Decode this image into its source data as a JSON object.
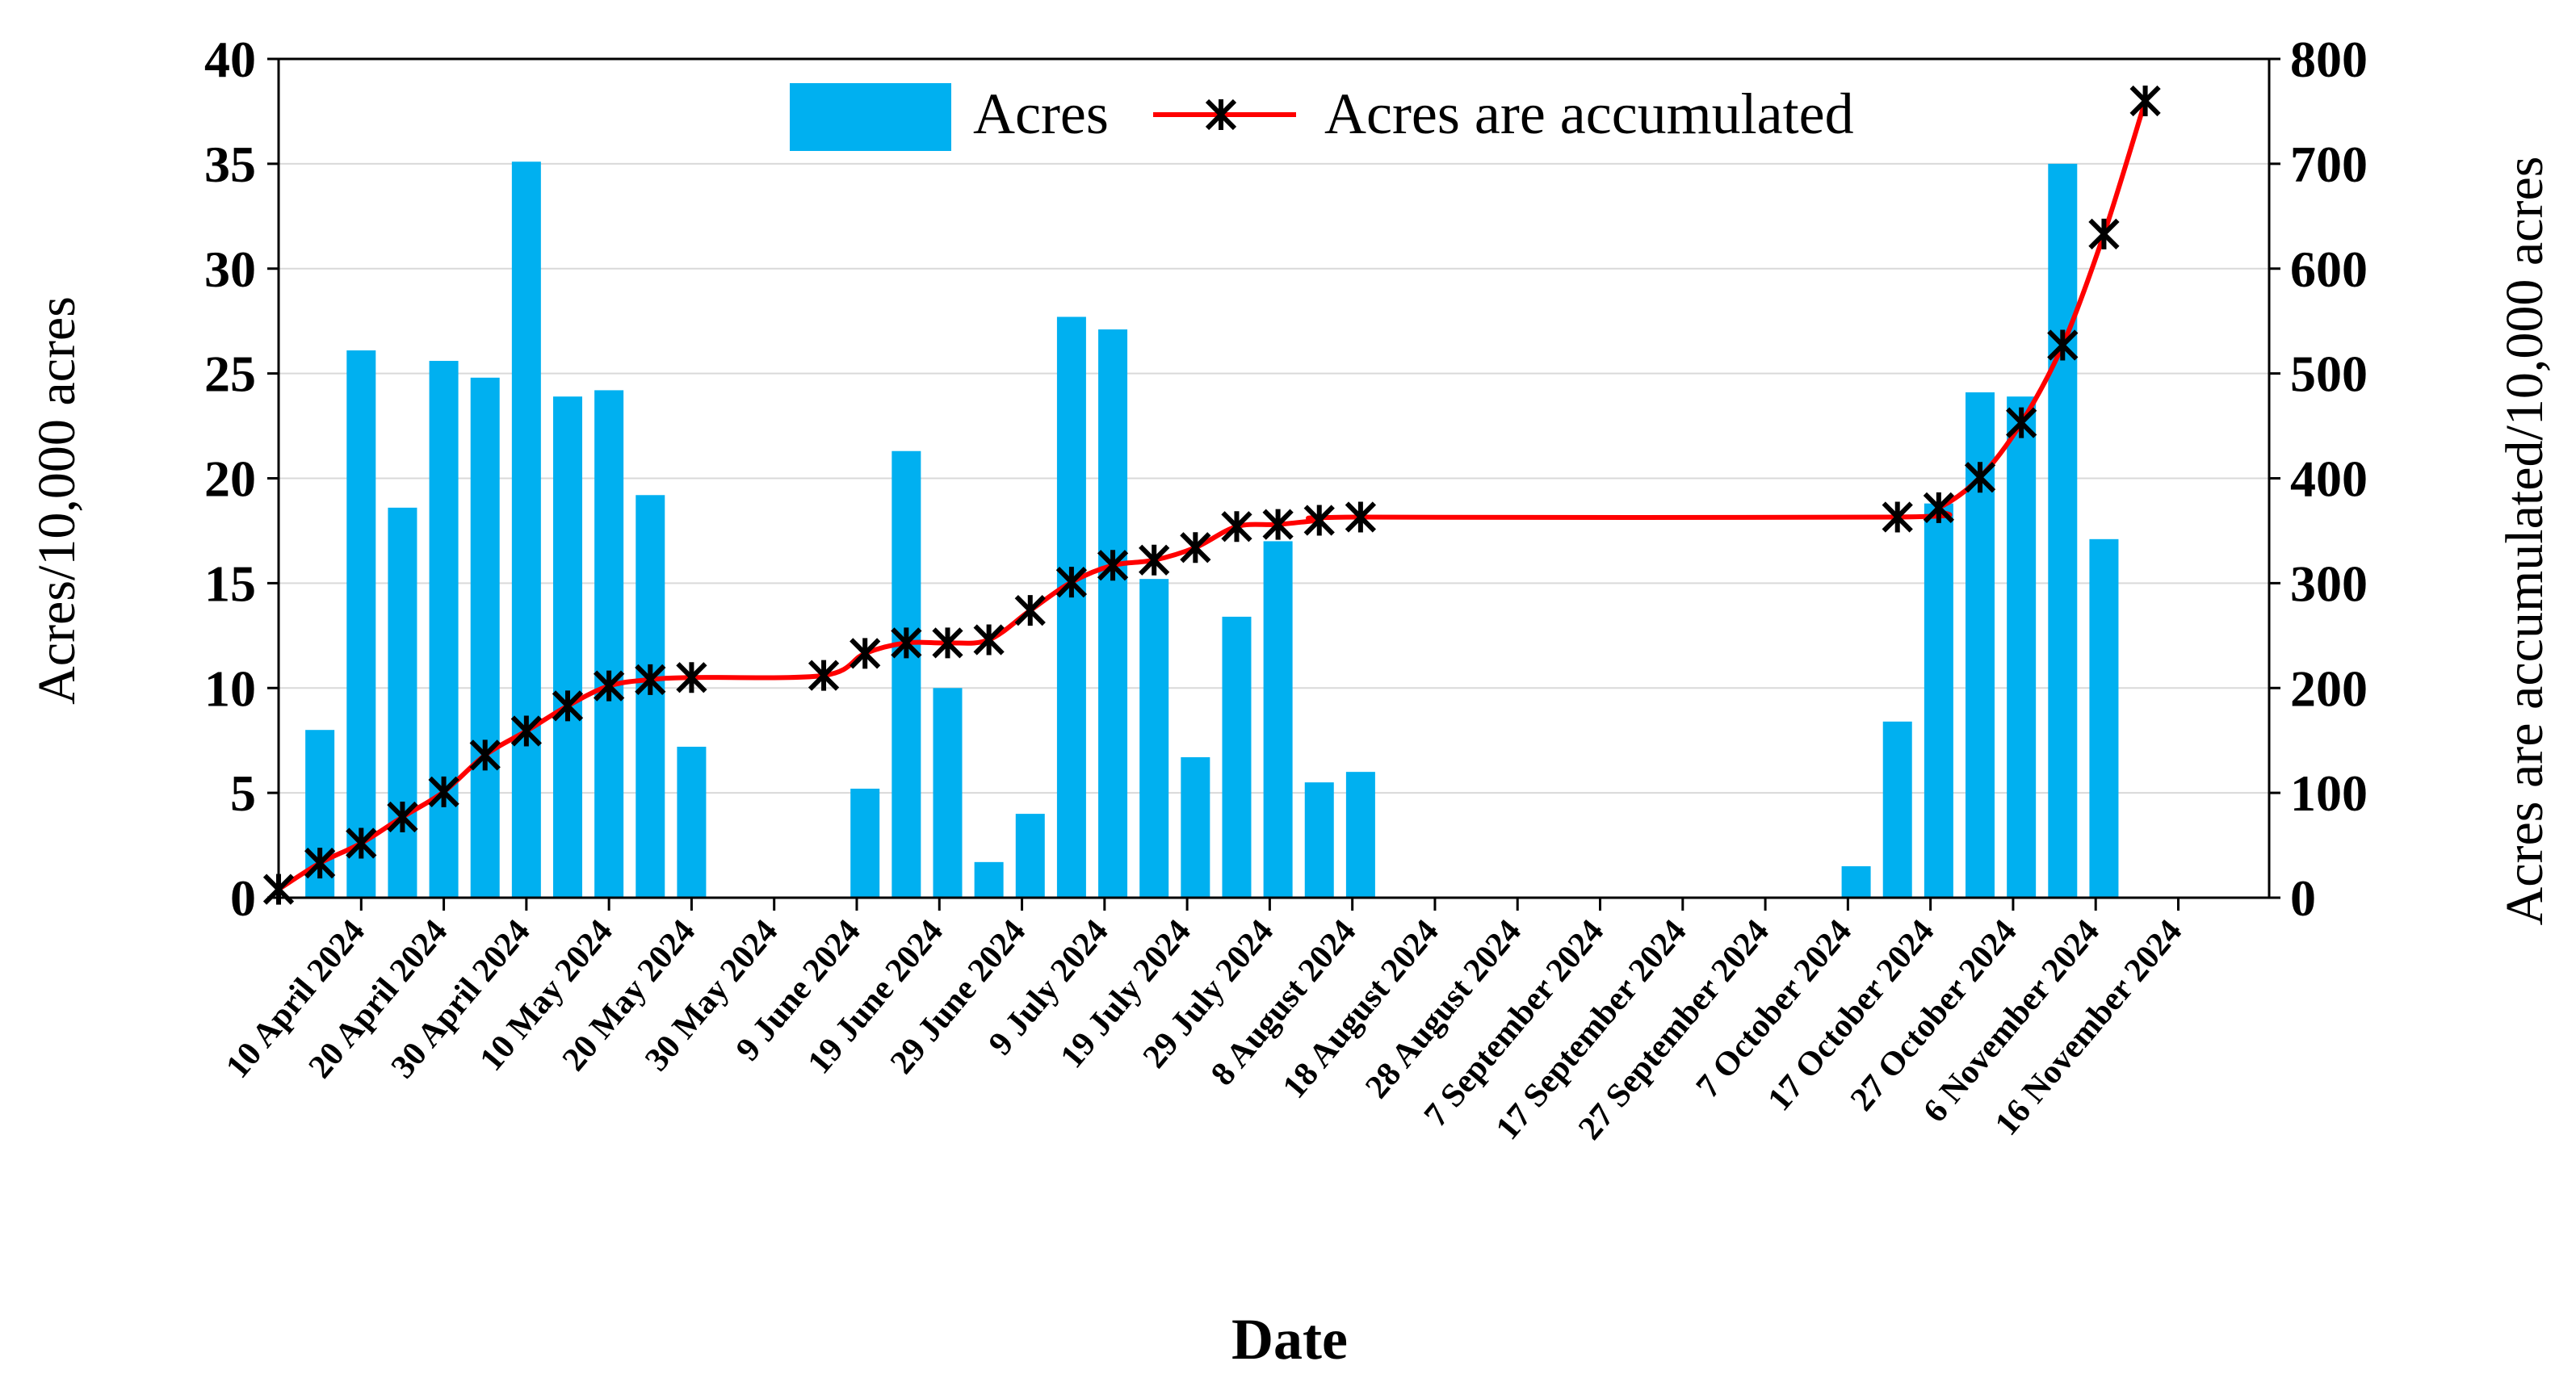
{
  "chart_data": {
    "type": "bar+line",
    "xlabel": "Date",
    "ylabel_left": "Acres/10,000 acres",
    "ylabel_right": "Acres are accumulated/10,000 acres",
    "ylim_left": [
      0,
      40
    ],
    "ylim_right": [
      0,
      800
    ],
    "yticks_left": [
      "0",
      "5",
      "10",
      "15",
      "20",
      "25",
      "30",
      "35",
      "40"
    ],
    "yticks_right": [
      "0",
      "100",
      "200",
      "300",
      "400",
      "500",
      "600",
      "700",
      "800"
    ],
    "x_tick_labels": [
      "10 April 2024",
      "20 April 2024",
      "30 April 2024",
      "10 May 2024",
      "20 May 2024",
      "30 May 2024",
      "9 June 2024",
      "19 June 2024",
      "29 June 2024",
      "9 July 2024",
      "19 July 2024",
      "29 July 2024",
      "8 August 2024",
      "18 August 2024",
      "28 August 2024",
      "7 September 2024",
      "17 September 2024",
      "27 September 2024",
      "7 October 2024",
      "17 October 2024",
      "27 October 2024",
      "6 November 2024",
      "16 November 2024"
    ],
    "x_tick_days": [
      10,
      20,
      30,
      40,
      50,
      60,
      70,
      80,
      90,
      100,
      110,
      120,
      130,
      140,
      150,
      160,
      170,
      180,
      190,
      200,
      210,
      220,
      230
    ],
    "day_note": "day index counted from 1 April 2024 (day 1)",
    "x_range_days": [
      0,
      241
    ],
    "legend": [
      "Acres",
      "Acres are accumulated"
    ],
    "series": [
      {
        "name": "Acres",
        "type": "bar",
        "axis": "left",
        "color": "#00b0f0",
        "days": [
          5,
          10,
          15,
          20,
          25,
          30,
          35,
          40,
          45,
          50,
          55,
          71,
          76,
          81,
          86,
          91,
          96,
          101,
          106,
          111,
          116,
          121,
          126,
          131,
          191,
          196,
          201,
          206,
          211,
          216,
          221
        ],
        "values": [
          8.0,
          26.1,
          18.6,
          25.6,
          24.8,
          35.1,
          23.9,
          24.2,
          19.2,
          7.2,
          0,
          5.2,
          21.3,
          10.0,
          1.7,
          4.0,
          27.7,
          27.1,
          15.2,
          6.7,
          13.4,
          17.0,
          5.5,
          6.0,
          1.5,
          8.4,
          18.8,
          24.1,
          23.9,
          35.0,
          17.1
        ]
      },
      {
        "name": "Acres are accumulated",
        "type": "line",
        "axis": "right",
        "color": "#ff0000",
        "marker_color": "#000000",
        "days": [
          0,
          5,
          10,
          15,
          20,
          25,
          30,
          35,
          40,
          45,
          50,
          66,
          71,
          76,
          81,
          86,
          91,
          96,
          101,
          106,
          111,
          116,
          121,
          126,
          131,
          196,
          201,
          206,
          211,
          216,
          221,
          226
        ],
        "values": [
          8,
          33,
          52,
          77,
          101,
          136,
          159,
          183,
          202,
          208,
          210,
          212,
          233,
          243,
          243,
          246,
          274,
          301,
          317,
          322,
          334,
          354,
          356,
          360,
          363,
          363,
          372,
          401,
          453,
          527,
          633,
          760
        ]
      }
    ]
  }
}
